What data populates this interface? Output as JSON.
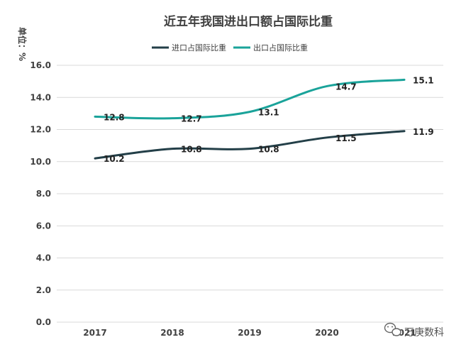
{
  "chart_data": {
    "type": "line",
    "title": "近五年我国进出口额占国际比重",
    "unit_label": "单位：%",
    "categories": [
      "2017",
      "2018",
      "2019",
      "2020",
      "2021"
    ],
    "series": [
      {
        "name": "进口占国际比重",
        "values": [
          10.2,
          10.8,
          10.8,
          11.5,
          11.9
        ],
        "color": "#233f48"
      },
      {
        "name": "出口占国际比重",
        "values": [
          12.8,
          12.7,
          13.1,
          14.7,
          15.1
        ],
        "color": "#1aa39a"
      }
    ],
    "ylim": [
      0,
      16
    ],
    "yticks": [
      "0.0",
      "2.0",
      "4.0",
      "6.0",
      "8.0",
      "10.0",
      "12.0",
      "14.0",
      "16.0"
    ],
    "grid": true,
    "legend_position": "top-center"
  },
  "watermark": {
    "text": "万庚数科",
    "icon": "wechat-icon"
  }
}
